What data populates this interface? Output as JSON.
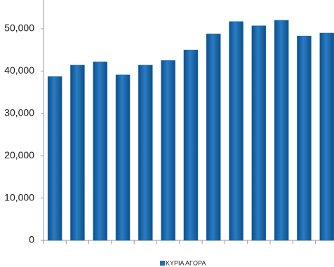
{
  "chart_data": {
    "type": "bar",
    "categories": [
      null,
      null,
      null,
      null,
      null,
      null,
      null,
      null,
      null,
      null,
      null,
      null,
      null
    ],
    "series": [
      {
        "name": "ΚΥΡΙΑ ΑΓΟΡΑ",
        "color": "#1f6fb2",
        "values": [
          38700,
          41400,
          42200,
          39100,
          41400,
          42500,
          45000,
          48800,
          51700,
          50700,
          52000,
          48300,
          49000
        ]
      }
    ],
    "ylim": [
      0,
      60000
    ],
    "yticks": [
      0,
      {
        "value": 10000,
        "label": "10,000"
      },
      {
        "value": 20000,
        "label": "20,000"
      },
      {
        "value": 30000,
        "label": "30,000"
      },
      {
        "value": 40000,
        "label": "40,000"
      },
      {
        "value": 50000,
        "label": "50,000"
      }
    ]
  }
}
